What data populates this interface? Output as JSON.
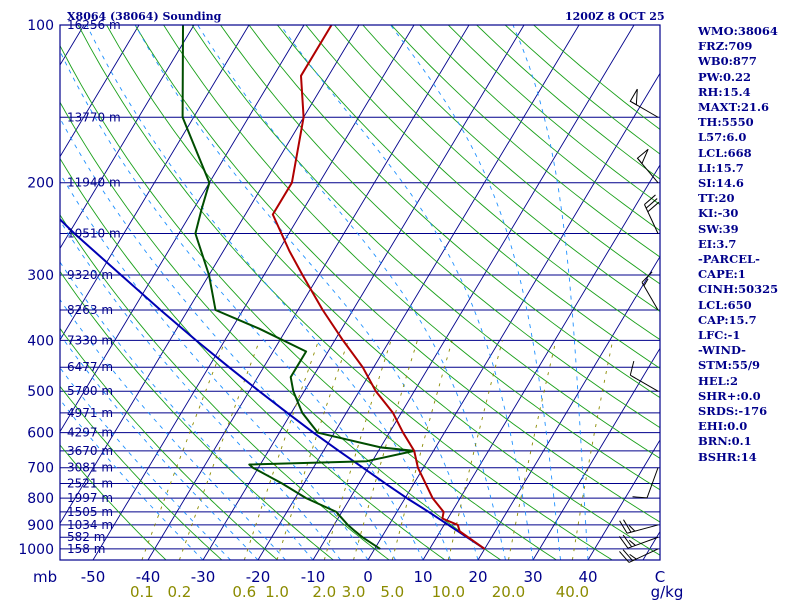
{
  "chart_data": {
    "type": "skew-t",
    "title": "X8064 (38064) Sounding",
    "datetime": "1200Z  8 OCT 25",
    "pressure_unit": "mb",
    "mixing_unit": "g/kg",
    "pressure_labels": [
      100,
      200,
      300,
      400,
      500,
      600,
      700,
      800,
      900,
      1000
    ],
    "temp_labels": [
      -50,
      -40,
      -30,
      -20,
      -10,
      0,
      10,
      20,
      30,
      40
    ],
    "temp_end_label": "C",
    "mixing_ratio_labels": [
      "0.1",
      "0.2",
      "0.6",
      "1.0",
      "2.0",
      "3.0",
      "5.0",
      "10.0",
      "20.0",
      "40.0"
    ],
    "height_labels": [
      {
        "p": 100,
        "h": "16256 m"
      },
      {
        "p": 150,
        "h": "13770 m"
      },
      {
        "p": 200,
        "h": "11940 m"
      },
      {
        "p": 250,
        "h": "10510 m"
      },
      {
        "p": 300,
        "h": "9320 m"
      },
      {
        "p": 350,
        "h": "8263 m"
      },
      {
        "p": 400,
        "h": "7330 m"
      },
      {
        "p": 450,
        "h": "6477 m"
      },
      {
        "p": 500,
        "h": "5700 m"
      },
      {
        "p": 550,
        "h": "4971 m"
      },
      {
        "p": 600,
        "h": "4297 m"
      },
      {
        "p": 650,
        "h": "3670 m"
      },
      {
        "p": 700,
        "h": "3081 m"
      },
      {
        "p": 750,
        "h": "2521 m"
      },
      {
        "p": 800,
        "h": "1997 m"
      },
      {
        "p": 850,
        "h": "1505 m"
      },
      {
        "p": 900,
        "h": "1034 m"
      },
      {
        "p": 950,
        "h": "582 m"
      },
      {
        "p": 1000,
        "h": "158 m"
      }
    ],
    "temperature": [
      {
        "p": 1000,
        "t": 20.0
      },
      {
        "p": 925,
        "t": 13.5
      },
      {
        "p": 900,
        "t": 12.5
      },
      {
        "p": 875,
        "t": 9.0
      },
      {
        "p": 850,
        "t": 8.5
      },
      {
        "p": 800,
        "t": 5.0
      },
      {
        "p": 700,
        "t": -1.0
      },
      {
        "p": 650,
        "t": -3.5
      },
      {
        "p": 600,
        "t": -7.5
      },
      {
        "p": 550,
        "t": -11.5
      },
      {
        "p": 500,
        "t": -17.0
      },
      {
        "p": 450,
        "t": -22.0
      },
      {
        "p": 400,
        "t": -28.5
      },
      {
        "p": 350,
        "t": -35.5
      },
      {
        "p": 300,
        "t": -43.0
      },
      {
        "p": 270,
        "t": -48.0
      },
      {
        "p": 230,
        "t": -55.0
      },
      {
        "p": 200,
        "t": -55.0
      },
      {
        "p": 150,
        "t": -60.0
      },
      {
        "p": 125,
        "t": -65.0
      },
      {
        "p": 100,
        "t": -65.0
      }
    ],
    "dewpoint": [
      {
        "p": 1000,
        "t": 1.0
      },
      {
        "p": 950,
        "t": -3.5
      },
      {
        "p": 925,
        "t": -5.5
      },
      {
        "p": 900,
        "t": -7.5
      },
      {
        "p": 850,
        "t": -11.0
      },
      {
        "p": 800,
        "t": -18.0
      },
      {
        "p": 750,
        "t": -24.0
      },
      {
        "p": 700,
        "t": -31.0
      },
      {
        "p": 690,
        "t": -32.0
      },
      {
        "p": 680,
        "t": -11.0
      },
      {
        "p": 650,
        "t": -3.5
      },
      {
        "p": 640,
        "t": -10.0
      },
      {
        "p": 600,
        "t": -23.0
      },
      {
        "p": 550,
        "t": -28.0
      },
      {
        "p": 500,
        "t": -32.0
      },
      {
        "p": 470,
        "t": -34.0
      },
      {
        "p": 420,
        "t": -34.0
      },
      {
        "p": 380,
        "t": -45.0
      },
      {
        "p": 350,
        "t": -55.0
      },
      {
        "p": 300,
        "t": -60.0
      },
      {
        "p": 250,
        "t": -67.0
      },
      {
        "p": 225,
        "t": -68.5
      },
      {
        "p": 200,
        "t": -70.0
      },
      {
        "p": 150,
        "t": -82.0
      },
      {
        "p": 100,
        "t": -92.0
      }
    ],
    "parcel_path": [
      {
        "p": 1000,
        "t": 20.0
      },
      {
        "p": 950,
        "t": 15.5
      },
      {
        "p": 900,
        "t": 10.8
      },
      {
        "p": 850,
        "t": 5.8
      },
      {
        "p": 800,
        "t": 0.3
      },
      {
        "p": 750,
        "t": -5.2
      },
      {
        "p": 700,
        "t": -11.0
      },
      {
        "p": 650,
        "t": -17.2
      },
      {
        "p": 600,
        "t": -23.8
      },
      {
        "p": 550,
        "t": -30.7
      },
      {
        "p": 500,
        "t": -38.2
      },
      {
        "p": 450,
        "t": -46.3
      },
      {
        "p": 400,
        "t": -55.2
      },
      {
        "p": 350,
        "t": -65.0
      },
      {
        "p": 300,
        "t": -76.0
      },
      {
        "p": 250,
        "t": -89.0
      },
      {
        "p": 200,
        "t": -104.0
      },
      {
        "p": 150,
        "t": -122.0
      },
      {
        "p": 100,
        "t": -146.0
      }
    ],
    "wind_barbs": [
      {
        "p": 1000,
        "dir": 245,
        "spd": 25
      },
      {
        "p": 950,
        "dir": 250,
        "spd": 25
      },
      {
        "p": 900,
        "dir": 255,
        "spd": 25
      },
      {
        "p": 700,
        "dir": 200,
        "spd": 10
      },
      {
        "p": 500,
        "dir": 300,
        "spd": 10
      },
      {
        "p": 350,
        "dir": 330,
        "spd": 15
      },
      {
        "p": 250,
        "dir": 335,
        "spd": 30
      },
      {
        "p": 200,
        "dir": 320,
        "spd": 50
      },
      {
        "p": 150,
        "dir": 300,
        "spd": 50
      }
    ]
  },
  "indices": [
    "WMO:38064",
    "FRZ:709",
    "WB0:877",
    "PW:0.22",
    "RH:15.4",
    "MAXT:21.6",
    "TH:5550",
    "L57:6.0",
    "LCL:668",
    "LI:15.7",
    "SI:14.6",
    "TT:20",
    "KI:-30",
    "SW:39",
    "EI:3.7",
    "-PARCEL-",
    "CAPE:1",
    "CINH:50325",
    "LCL:650",
    "CAP:15.7",
    "LFC:-1",
    "-WIND-",
    "STM:55/9",
    "HEL:2",
    "SHR+:0.0",
    "SRDS:-176",
    "EHI:0.0",
    "BRN:0.1",
    "BSHR:14"
  ],
  "colors": {
    "border": "#00008b",
    "isobar": "#00008b",
    "isotherm": "#00008b",
    "dry_adiabat": "#1aa01a",
    "moist_adiabat": "#1e90ff",
    "mixing_ratio": "#8b8b00",
    "temperature": "#b00000",
    "dewpoint": "#004d00",
    "parcel": "#0000b4",
    "barb": "#000000"
  }
}
